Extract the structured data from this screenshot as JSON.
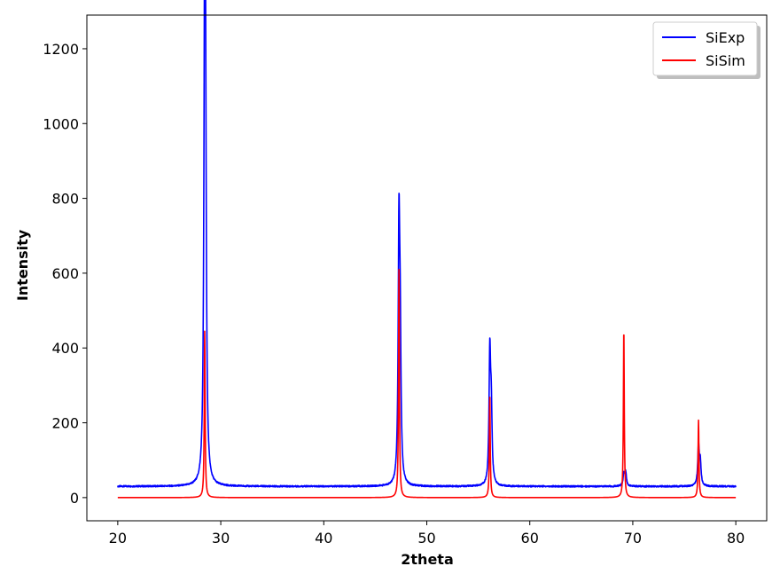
{
  "chart_data": {
    "type": "line",
    "title": "",
    "xlabel": "2theta",
    "ylabel": "Intensity",
    "xlim": [
      17,
      83
    ],
    "ylim": [
      -62,
      1290
    ],
    "xticks": [
      20,
      30,
      40,
      50,
      60,
      70,
      80
    ],
    "yticks": [
      0,
      200,
      400,
      600,
      800,
      1000,
      1200
    ],
    "grid": false,
    "legend": "top-right",
    "baseline_exp": 30,
    "series": [
      {
        "name": "SiExp",
        "color": "#0000ff",
        "peaks": [
          {
            "x": 28.44,
            "y": 1230
          },
          {
            "x": 28.52,
            "y": 760
          },
          {
            "x": 47.3,
            "y": 697
          },
          {
            "x": 47.42,
            "y": 358
          },
          {
            "x": 56.12,
            "y": 375
          },
          {
            "x": 56.26,
            "y": 212
          },
          {
            "x": 69.13,
            "y": 60
          },
          {
            "x": 69.3,
            "y": 68
          },
          {
            "x": 76.38,
            "y": 135
          },
          {
            "x": 76.55,
            "y": 90
          }
        ]
      },
      {
        "name": "SiSim",
        "color": "#ff0000",
        "peaks": [
          {
            "x": 28.44,
            "y": 445
          },
          {
            "x": 47.3,
            "y": 610
          },
          {
            "x": 56.12,
            "y": 268
          },
          {
            "x": 69.13,
            "y": 452
          },
          {
            "x": 76.38,
            "y": 207
          }
        ]
      }
    ]
  }
}
